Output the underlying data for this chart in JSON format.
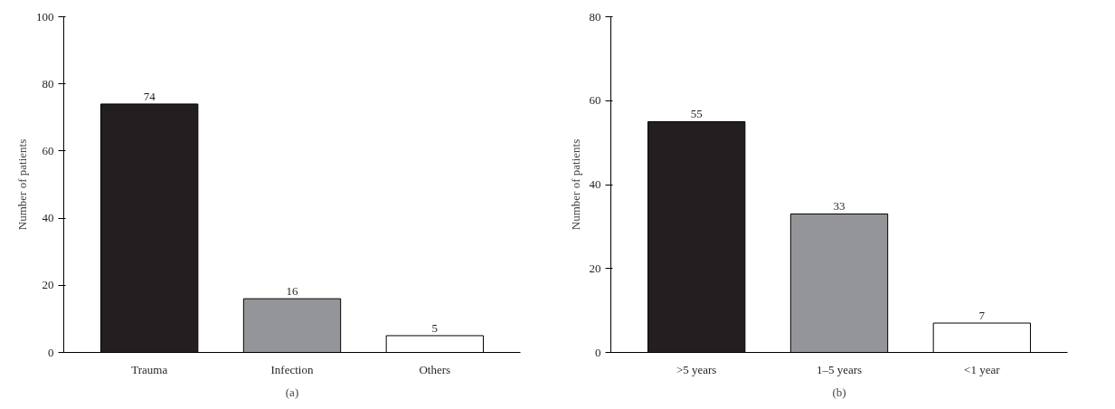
{
  "chart_data": [
    {
      "type": "bar",
      "ylabel": "Number of patients",
      "categories": [
        "Trauma",
        "Infection",
        "Others"
      ],
      "values": [
        74,
        16,
        5
      ],
      "colors": [
        "#231f20",
        "#939598",
        "#ffffff"
      ],
      "ylim": [
        0,
        100
      ],
      "yticks": [
        0,
        20,
        40,
        60,
        80,
        100
      ],
      "data_labels": true,
      "grid": false,
      "annotations": [
        "(a)"
      ]
    },
    {
      "type": "bar",
      "ylabel": "Number of patients",
      "categories": [
        ">5 years",
        "1–5 years",
        "<1 year"
      ],
      "values": [
        55,
        33,
        7
      ],
      "colors": [
        "#231f20",
        "#939598",
        "#ffffff"
      ],
      "ylim": [
        0,
        80
      ],
      "yticks": [
        0,
        20,
        40,
        60,
        80
      ],
      "data_labels": true,
      "grid": false,
      "annotations": [
        "(b)"
      ]
    }
  ]
}
